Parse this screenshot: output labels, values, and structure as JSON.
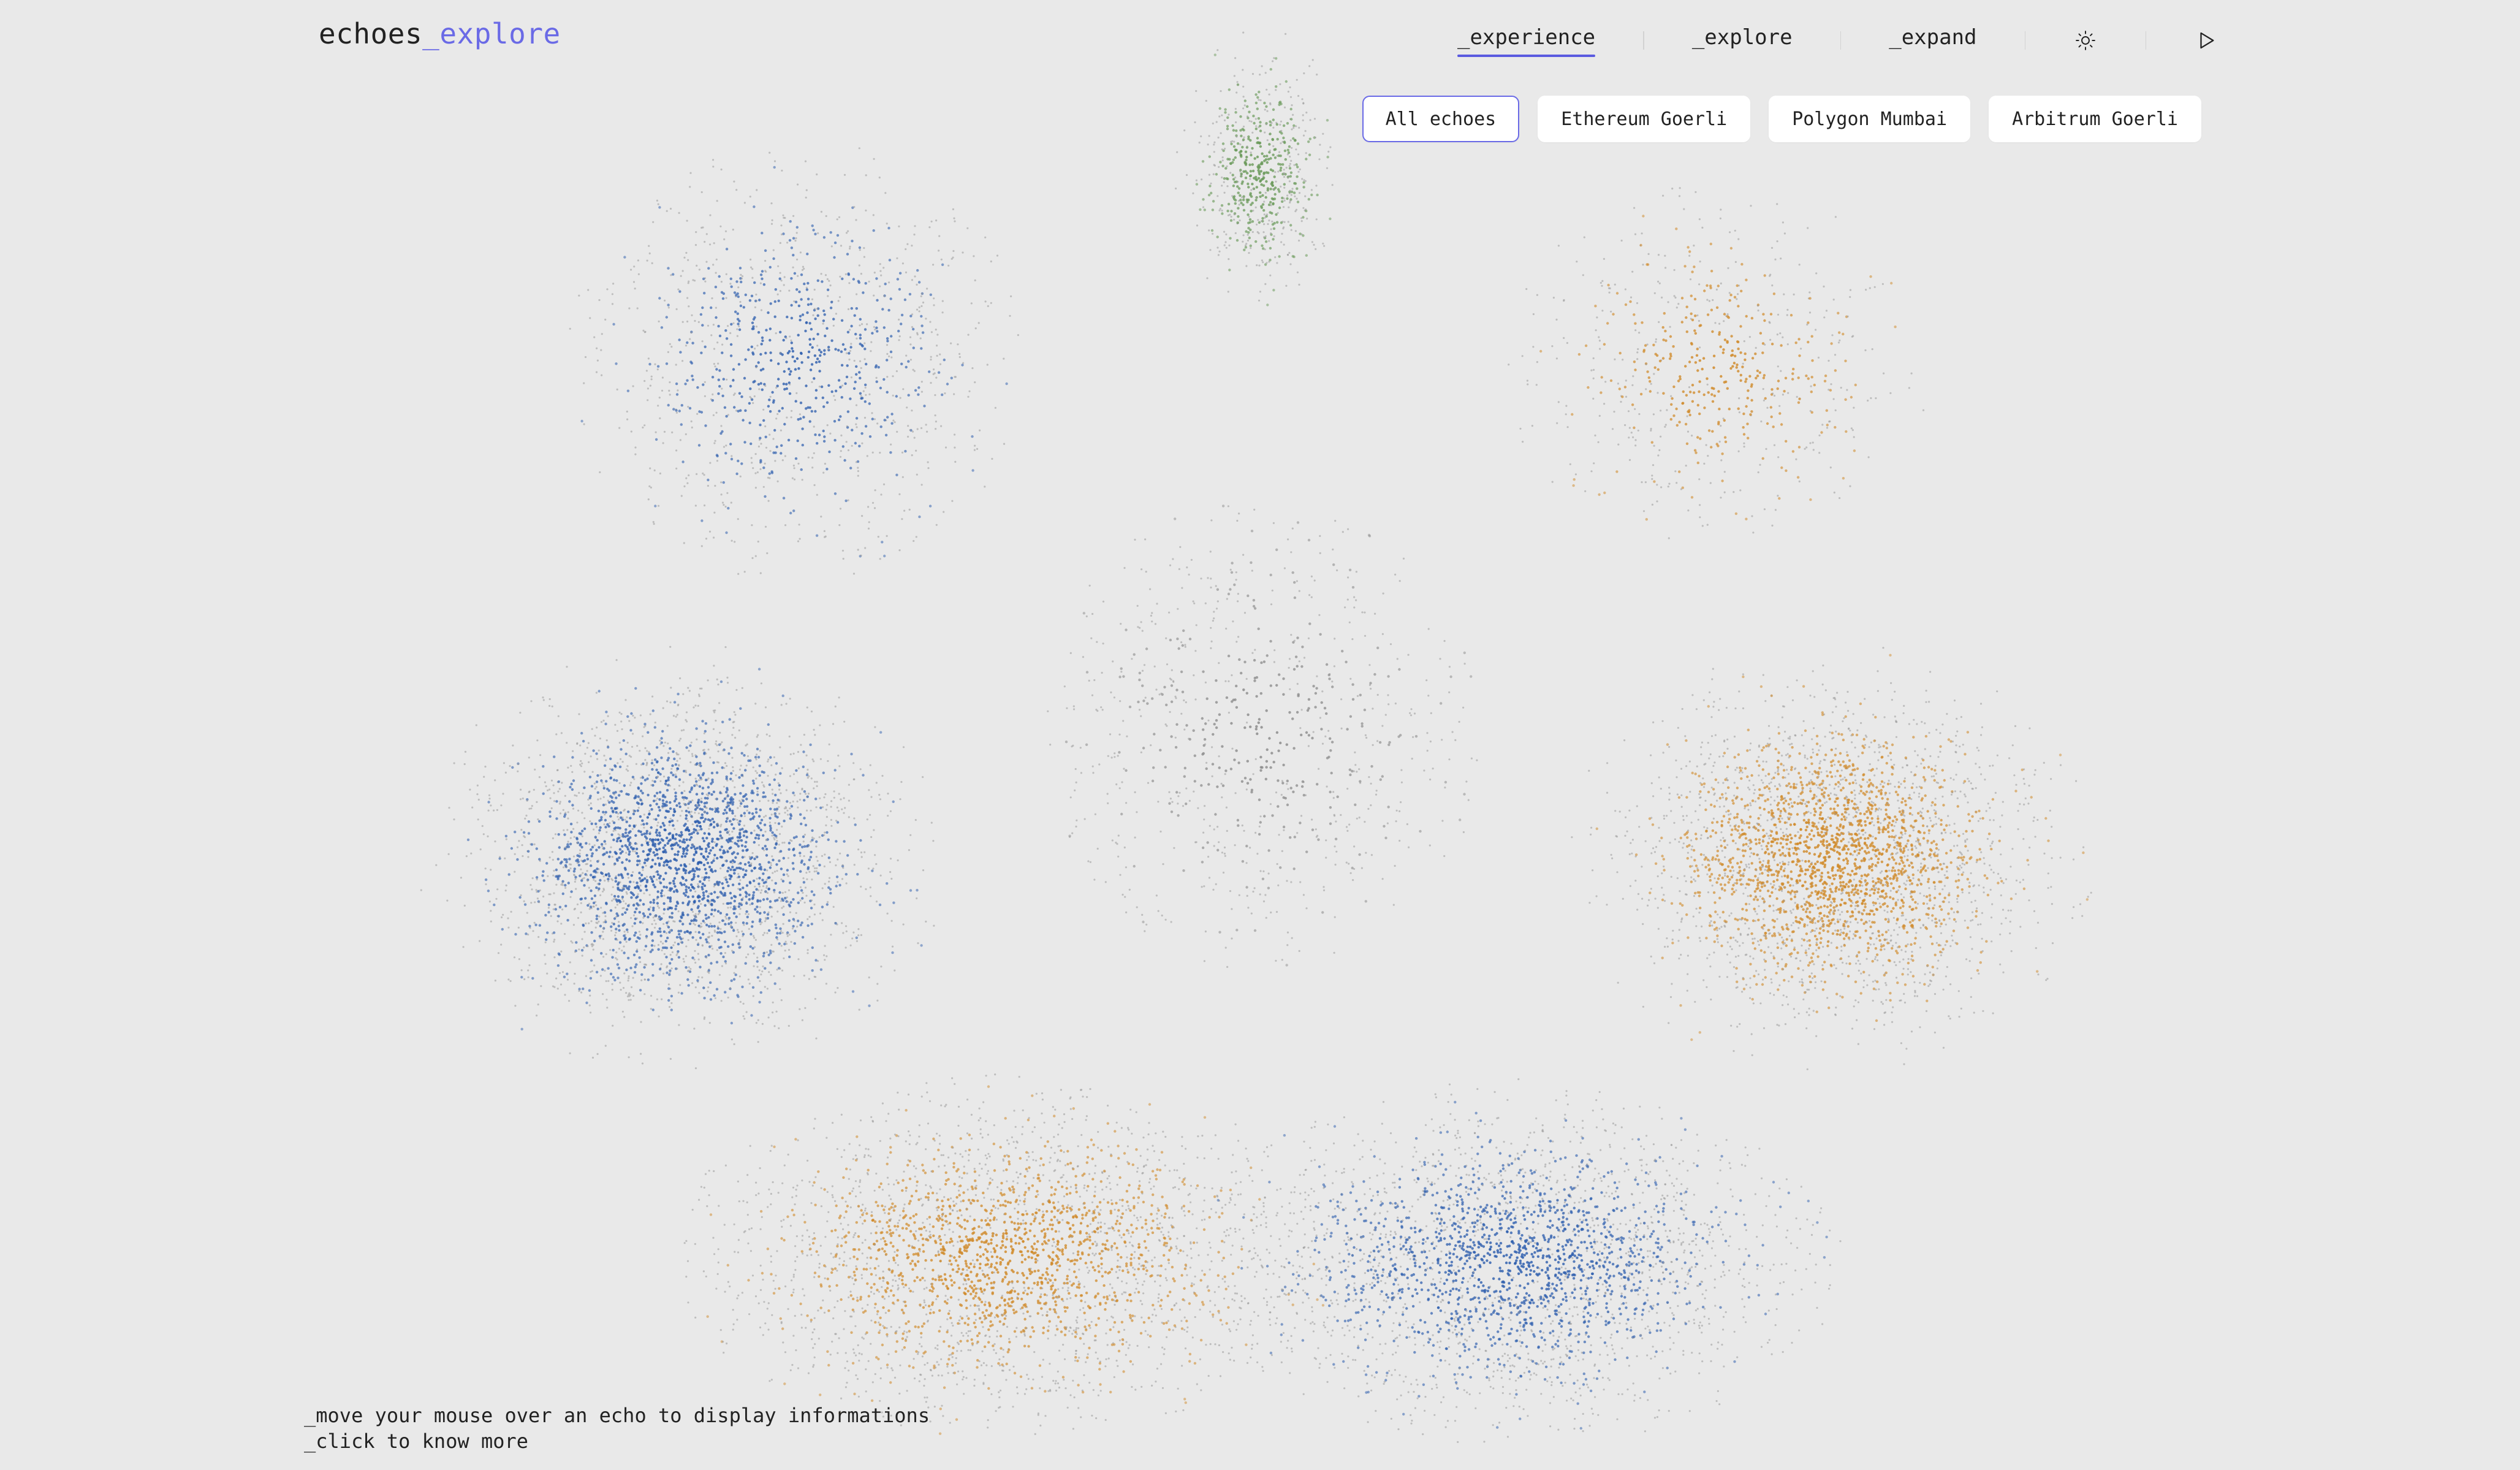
{
  "header": {
    "logo_main": "echoes",
    "logo_accent": "_explore"
  },
  "nav": {
    "items": [
      {
        "label": "_experience",
        "active": true
      },
      {
        "label": "_explore",
        "active": false
      },
      {
        "label": "_expand",
        "active": false
      }
    ],
    "theme_icon": "sun-icon",
    "play_icon": "play-icon"
  },
  "filters": {
    "items": [
      {
        "label": "All echoes",
        "active": true
      },
      {
        "label": "Ethereum Goerli",
        "active": false
      },
      {
        "label": "Polygon Mumbai",
        "active": false
      },
      {
        "label": "Arbitrum Goerli",
        "active": false
      }
    ]
  },
  "hints": {
    "line1": "_move your mouse over an echo to display informations",
    "line2": "_click to know more"
  },
  "colors": {
    "accent": "#6a6ae6",
    "background": "#e9e9e9",
    "echo_blue": "#2f5fae",
    "echo_orange": "#d08a2a",
    "echo_green": "#6a9a5a",
    "echo_grey": "#8a8a8a"
  }
}
